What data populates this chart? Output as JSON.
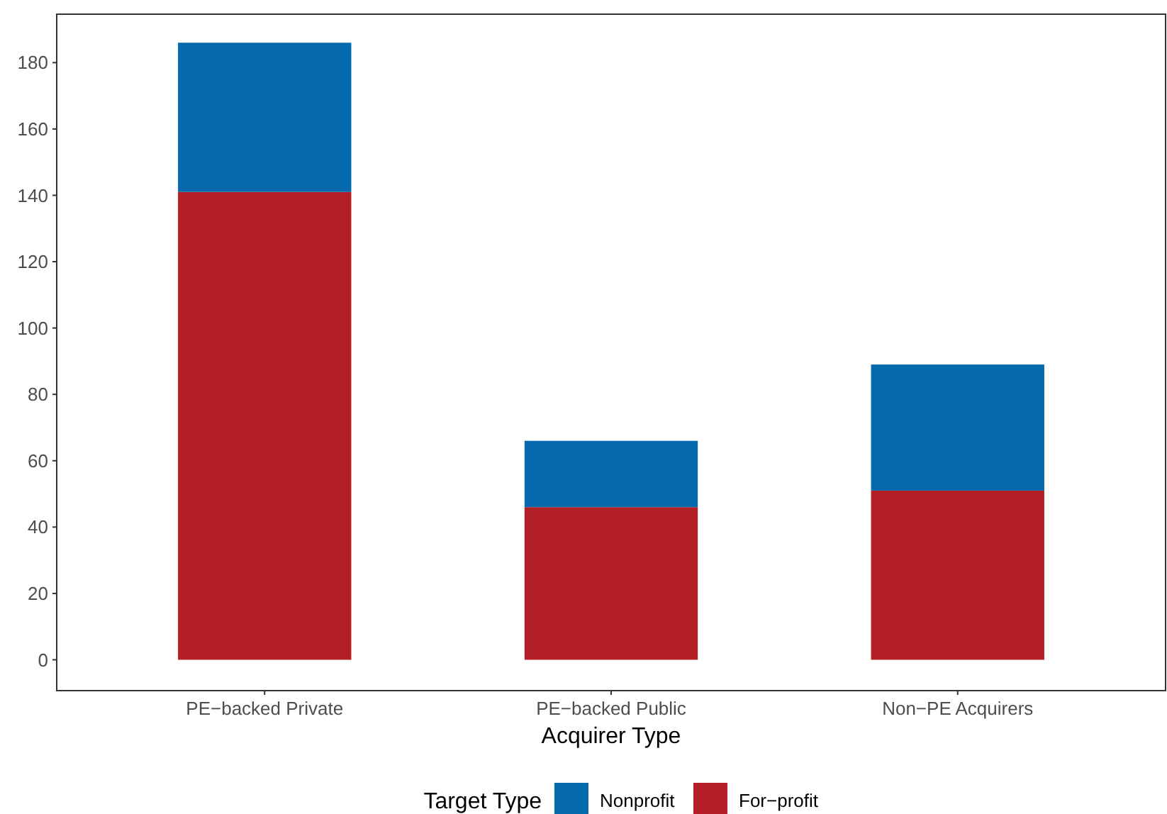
{
  "chart_data": {
    "type": "bar",
    "stacked": true,
    "xlabel": "Acquirer Type",
    "legend_title": "Target Type",
    "legend": "bottom",
    "grid": false,
    "categories": [
      "PE−backed Private",
      "PE−backed Public",
      "Non−PE Acquirers"
    ],
    "series": [
      {
        "name": "For−profit",
        "color": "#b41f26",
        "values": [
          141,
          46,
          51
        ]
      },
      {
        "name": "Nonprofit",
        "color": "#0569ad",
        "values": [
          45,
          20,
          38
        ]
      }
    ],
    "ylim": [
      -9.3,
      194.6
    ],
    "yticks": [
      0,
      20,
      40,
      60,
      80,
      100,
      120,
      140,
      160,
      180
    ]
  }
}
